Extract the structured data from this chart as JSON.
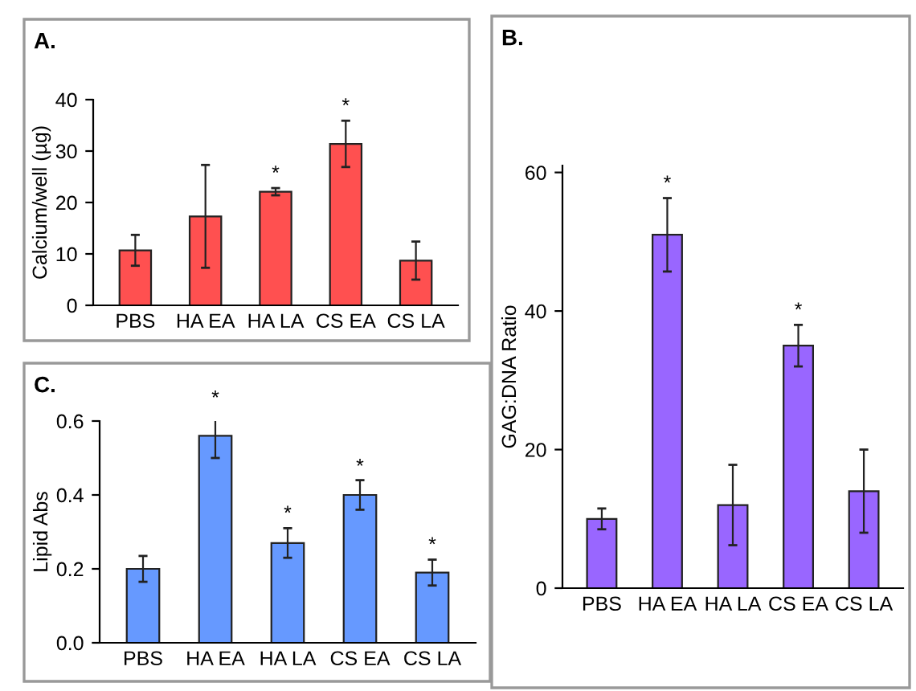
{
  "chart_data": [
    {
      "type": "bar",
      "title": "A.",
      "ylabel": "Calcium/well (µg)",
      "categories": [
        "PBS",
        "HA EA",
        "HA LA",
        "CS EA",
        "CS LA"
      ],
      "values": [
        10.7,
        17.3,
        22.1,
        31.4,
        8.7
      ],
      "errors": [
        3,
        10,
        0.7,
        4.5,
        3.7
      ],
      "color": "#ff5050",
      "ylim": [
        0,
        40
      ],
      "yticks": [
        0,
        10,
        20,
        30,
        40
      ],
      "grid": false,
      "legend": false,
      "annotations": [
        {
          "text": "*",
          "x": "HA LA",
          "y": 22.8
        },
        {
          "text": "*",
          "x": "CS EA",
          "y": 35.9
        }
      ]
    },
    {
      "type": "bar",
      "title": "B.",
      "ylabel": "GAG:DNA Ratio",
      "categories": [
        "PBS",
        "HA EA",
        "HA LA",
        "CS EA",
        "CS LA"
      ],
      "values": [
        10,
        51,
        12,
        35,
        14
      ],
      "errors": [
        1.5,
        5.3,
        5.8,
        3,
        6
      ],
      "color": "#9966ff",
      "ylim": [
        0,
        61
      ],
      "yticks": [
        0,
        20,
        40,
        60
      ],
      "grid": false,
      "legend": false,
      "annotations": [
        {
          "text": "*",
          "x": "HA EA",
          "y": 56.3
        },
        {
          "text": "*",
          "x": "CS EA",
          "y": 38
        }
      ]
    },
    {
      "type": "bar",
      "title": "C.",
      "ylabel": "Lipid Abs",
      "categories": [
        "PBS",
        "HA EA",
        "HA LA",
        "CS EA",
        "CS LA"
      ],
      "values": [
        0.2,
        0.56,
        0.27,
        0.4,
        0.19
      ],
      "errors": [
        0.035,
        0.06,
        0.04,
        0.04,
        0.035
      ],
      "color": "#6699ff",
      "ylim": [
        0,
        0.6
      ],
      "yticks": [
        {
          "value": 0,
          "label": "0.0"
        },
        0.2,
        0.4,
        0.6
      ],
      "grid": false,
      "legend": false,
      "annotations": [
        {
          "text": "*",
          "x": "HA EA",
          "y": 0.622
        },
        {
          "text": "*",
          "x": "HA LA",
          "y": 0.31
        },
        {
          "text": "*",
          "x": "CS EA",
          "y": 0.437
        },
        {
          "text": "*",
          "x": "CS LA",
          "y": 0.225
        }
      ]
    }
  ]
}
